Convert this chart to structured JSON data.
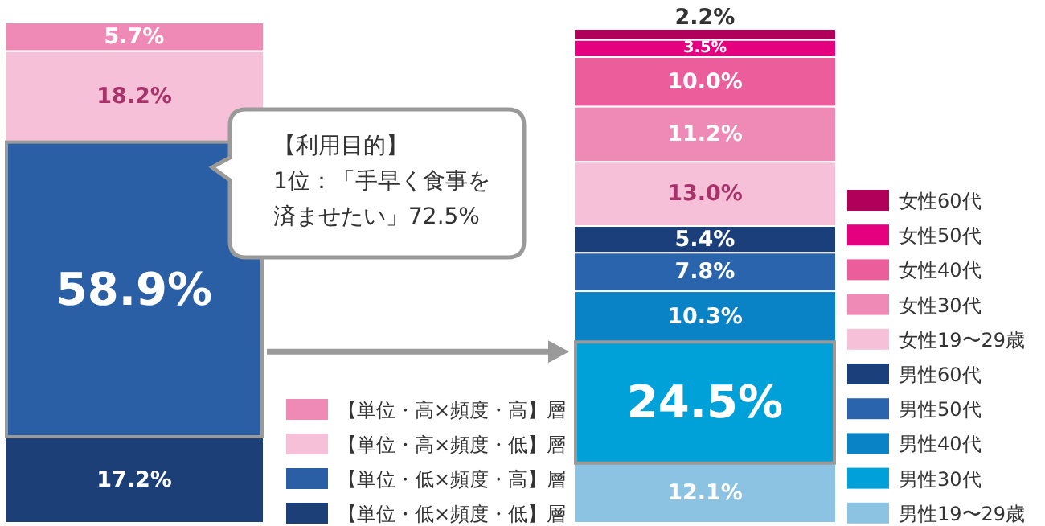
{
  "chart_data": [
    {
      "type": "bar",
      "stacked": true,
      "categories": [
        null
      ],
      "legend": "bottom right",
      "annotations": [
        "【利用目的】",
        "1位：「手早く食事を",
        "済ませたい」72.5%"
      ],
      "series": [
        {
          "name": "【単位・低×頻度・低】層",
          "color": "#1c3f78",
          "values": [
            17.2
          ],
          "value_labels": [
            "17.2%"
          ]
        },
        {
          "name": "【単位・低×頻度・高】層",
          "color": "#2a5fa5",
          "values": [
            58.9
          ],
          "value_labels": [
            "58.9%"
          ]
        },
        {
          "name": "【単位・高×頻度・低】層",
          "color": "#f6c0d8",
          "values": [
            18.2
          ],
          "value_labels": [
            "18.2%"
          ]
        },
        {
          "name": "【単位・高×頻度・高】層",
          "color": "#ef8ab7",
          "values": [
            5.7
          ],
          "value_labels": [
            "5.7%"
          ]
        }
      ]
    },
    {
      "type": "bar",
      "stacked": true,
      "categories": [
        null
      ],
      "legend": "right",
      "series": [
        {
          "name": "男性19〜29歳",
          "color": "#8cc3e3",
          "values": [
            12.1
          ],
          "value_labels": [
            "12.1%"
          ]
        },
        {
          "name": "男性30代",
          "color": "#00a0d9",
          "values": [
            24.5
          ],
          "value_labels": [
            "24.5%"
          ]
        },
        {
          "name": "男性40代",
          "color": "#0a83c6",
          "values": [
            10.3
          ],
          "value_labels": [
            "10.3%"
          ]
        },
        {
          "name": "男性50代",
          "color": "#2a64ad",
          "values": [
            7.8
          ],
          "value_labels": [
            "7.8%"
          ]
        },
        {
          "name": "男性60代",
          "color": "#1b3f7a",
          "values": [
            5.4
          ],
          "value_labels": [
            "5.4%"
          ]
        },
        {
          "name": "女性19〜29歳",
          "color": "#f6c0d8",
          "values": [
            13.0
          ],
          "value_labels": [
            "13.0%"
          ]
        },
        {
          "name": "女性30代",
          "color": "#ef8ab7",
          "values": [
            11.2
          ],
          "value_labels": [
            "11.2%"
          ]
        },
        {
          "name": "女性40代",
          "color": "#ec5d9c",
          "values": [
            10.0
          ],
          "value_labels": [
            "10.0%"
          ]
        },
        {
          "name": "女性50代",
          "color": "#e4007f",
          "values": [
            3.5
          ],
          "value_labels": [
            "3.5%"
          ]
        },
        {
          "name": "女性60代",
          "color": "#b0005a",
          "values": [
            2.2
          ],
          "value_labels": [
            "2.2%"
          ]
        }
      ]
    }
  ]
}
